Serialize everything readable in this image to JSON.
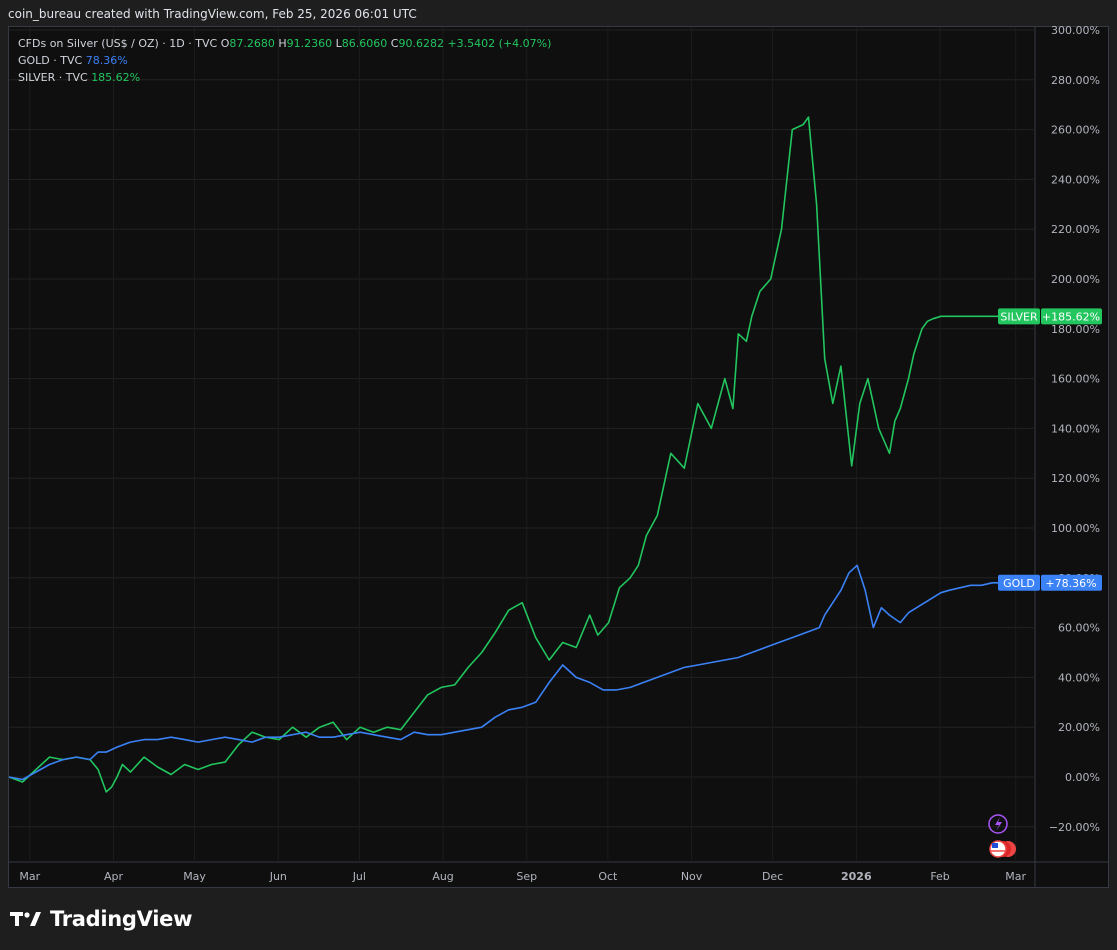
{
  "header": {
    "caption": "coin_bureau created with TradingView.com, Feb 25, 2026 06:01 UTC"
  },
  "legend": {
    "symbol_line": "CFDs on Silver (US$ / OZ) · 1D · TVC",
    "ohlc": {
      "o_label": "O",
      "o": "87.2680",
      "h_label": "H",
      "h": "91.2360",
      "l_label": "L",
      "l": "86.6060",
      "c_label": "C",
      "c": "90.6282",
      "change": "+3.5402 (+4.07%)"
    },
    "gold_label": "GOLD · TVC",
    "gold_value": "78.36%",
    "silver_label": "SILVER · TVC",
    "silver_value": "185.62%"
  },
  "brand": {
    "name": "TradingView"
  },
  "colors": {
    "silver": "#22c55e",
    "gold": "#3b82f6",
    "background": "#0f0f0f",
    "grid": "#232323"
  },
  "chart_data": {
    "type": "line",
    "ylim": [
      -25,
      300
    ],
    "y_tick_values": [
      -20,
      0,
      20,
      40,
      60,
      80,
      100,
      120,
      140,
      160,
      180,
      200,
      220,
      240,
      260,
      280,
      300
    ],
    "y_tick_labels": [
      "−20.00%",
      "0.00%",
      "20.00%",
      "40.00%",
      "60.00%",
      "80.00%",
      "100.00%",
      "120.00%",
      "140.00%",
      "160.00%",
      "180.00%",
      "200.00%",
      "220.00%",
      "240.00%",
      "260.00%",
      "280.00%",
      "300.00%"
    ],
    "x_tick_labels": [
      "Mar",
      "Apr",
      "May",
      "Jun",
      "Jul",
      "Aug",
      "Sep",
      "Oct",
      "Nov",
      "Dec",
      "2026",
      "Feb",
      "Mar"
    ],
    "x_tick_days": [
      4,
      35,
      65,
      96,
      126,
      157,
      188,
      218,
      249,
      279,
      310,
      341,
      369
    ],
    "xlim_days": [
      0,
      378
    ],
    "series": [
      {
        "name": "SILVER",
        "label_tag": "SILVER",
        "value_tag": "+185.62%",
        "x": [
          0,
          5,
          10,
          15,
          20,
          25,
          30,
          33,
          36,
          38,
          40,
          42,
          45,
          50,
          55,
          60,
          65,
          70,
          75,
          80,
          85,
          90,
          95,
          100,
          105,
          110,
          115,
          120,
          125,
          130,
          135,
          140,
          145,
          150,
          155,
          160,
          165,
          170,
          175,
          180,
          185,
          190,
          195,
          200,
          205,
          210,
          215,
          218,
          222,
          226,
          230,
          233,
          236,
          240,
          245,
          250,
          255,
          260,
          265,
          268,
          270,
          273,
          275,
          278,
          282,
          286,
          290,
          294,
          296,
          299,
          302,
          305,
          308,
          312,
          315,
          318,
          322,
          326,
          328,
          330,
          333,
          335,
          338,
          340,
          342,
          345,
          347,
          349,
          351,
          353,
          355,
          358,
          360,
          364,
          368,
          372,
          375
        ],
        "y": [
          0,
          -2,
          3,
          8,
          7,
          8,
          7,
          3,
          -6,
          -4,
          0,
          5,
          2,
          8,
          4,
          1,
          5,
          3,
          5,
          6,
          13,
          18,
          16,
          15,
          20,
          16,
          20,
          22,
          15,
          20,
          18,
          20,
          19,
          26,
          33,
          36,
          37,
          44,
          50,
          58,
          67,
          70,
          56,
          47,
          54,
          52,
          65,
          57,
          62,
          76,
          80,
          85,
          97,
          105,
          130,
          124,
          150,
          140,
          160,
          148,
          178,
          175,
          185,
          195,
          200,
          220,
          260,
          262,
          265,
          230,
          168,
          150,
          165,
          125,
          150,
          160,
          140,
          130,
          143,
          148,
          160,
          170,
          180,
          183,
          184,
          185,
          185,
          185,
          185,
          185,
          185,
          185,
          185,
          185,
          185,
          185,
          185
        ]
      },
      {
        "name": "GOLD",
        "label_tag": "GOLD",
        "value_tag": "+78.36%",
        "x": [
          0,
          5,
          10,
          15,
          20,
          25,
          30,
          33,
          36,
          40,
          45,
          50,
          55,
          60,
          65,
          70,
          75,
          80,
          85,
          90,
          95,
          100,
          105,
          110,
          115,
          120,
          125,
          130,
          135,
          140,
          145,
          150,
          155,
          160,
          165,
          170,
          175,
          180,
          185,
          190,
          195,
          200,
          205,
          210,
          215,
          220,
          225,
          230,
          235,
          240,
          245,
          250,
          255,
          260,
          265,
          270,
          275,
          280,
          285,
          290,
          295,
          300,
          302,
          305,
          308,
          311,
          314,
          317,
          320,
          323,
          326,
          330,
          333,
          336,
          339,
          342,
          345,
          348,
          352,
          356,
          360,
          364,
          368,
          372,
          375
        ],
        "y": [
          0,
          -1,
          2,
          5,
          7,
          8,
          7,
          10,
          10,
          12,
          14,
          15,
          15,
          16,
          15,
          14,
          15,
          16,
          15,
          14,
          16,
          16,
          17,
          18,
          16,
          16,
          17,
          18,
          17,
          16,
          15,
          18,
          17,
          17,
          18,
          19,
          20,
          24,
          27,
          28,
          30,
          38,
          45,
          40,
          38,
          35,
          35,
          36,
          38,
          40,
          42,
          44,
          45,
          46,
          47,
          48,
          50,
          52,
          54,
          56,
          58,
          60,
          65,
          70,
          75,
          82,
          85,
          75,
          60,
          68,
          65,
          62,
          66,
          68,
          70,
          72,
          74,
          75,
          76,
          77,
          77,
          78,
          78,
          78,
          78
        ]
      }
    ]
  }
}
